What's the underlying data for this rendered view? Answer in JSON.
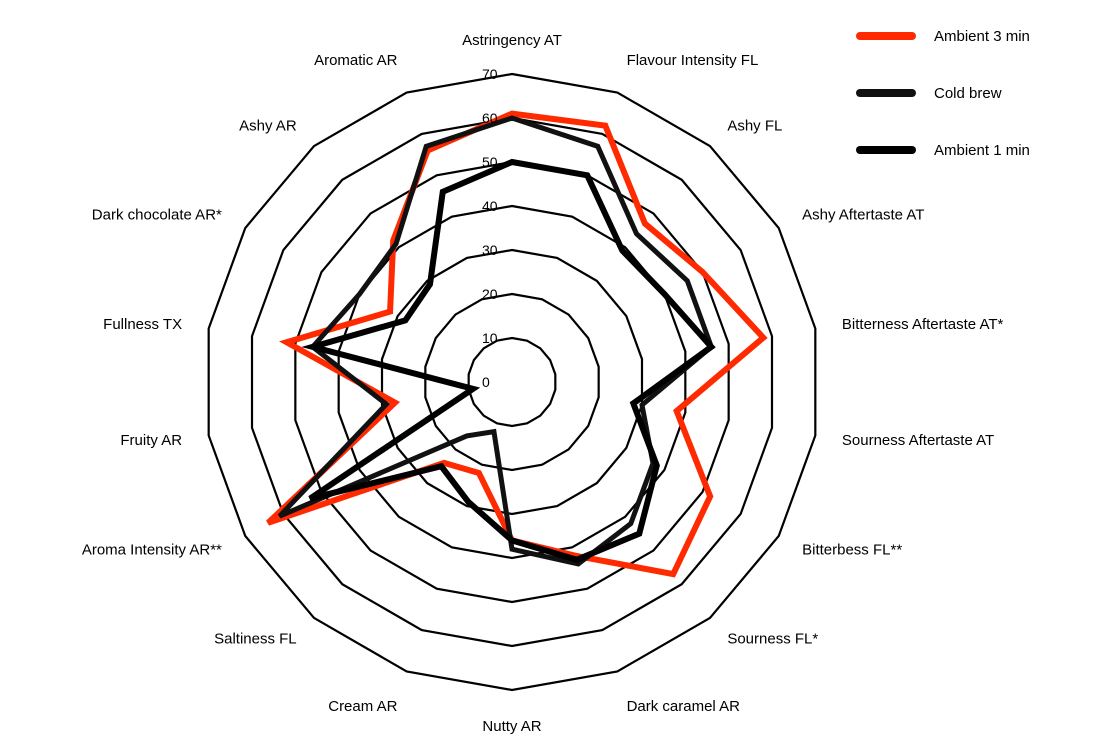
{
  "chart_data": {
    "type": "radar",
    "title": "",
    "r_range": [
      0,
      70
    ],
    "r_ticks": [
      "0",
      "10",
      "20",
      "30",
      "40",
      "50",
      "60",
      "70"
    ],
    "axes": [
      "Astringency AT",
      "Flavour Intensity FL",
      "Ashy FL",
      "Ashy Aftertaste AT",
      "Bitterness Aftertaste AT*",
      "Sourness Aftertaste AT",
      "Bitterbess FL**",
      "Sourness FL*",
      "Dark caramel AR",
      "Nutty AR",
      "Cream AR",
      "Saltiness FL",
      "Aroma Intensity AR**",
      "Fruity AR",
      "Fullness TX",
      "Dark chocolate AR*",
      "Ashy AR",
      "Aromatic AR"
    ],
    "series": [
      {
        "name": "Ambient 3 min",
        "color": "#ff2a00",
        "values": [
          61,
          62,
          47,
          50,
          58,
          38,
          52,
          57,
          42,
          36,
          22,
          24,
          64,
          27,
          52,
          32,
          42,
          56
        ]
      },
      {
        "name": "Cold brew",
        "color": "#111111",
        "values": [
          60,
          57,
          44,
          46,
          46,
          30,
          37,
          42,
          44,
          38,
          12,
          16,
          61,
          29,
          46,
          40,
          41,
          57
        ]
      },
      {
        "name": "Ambient 1 min",
        "color": "#000000",
        "values": [
          50,
          50,
          39,
          40,
          46,
          28,
          38,
          45,
          43,
          36,
          29,
          25,
          53,
          9,
          46,
          28,
          29,
          46
        ]
      }
    ],
    "legend_position": "top-right"
  }
}
